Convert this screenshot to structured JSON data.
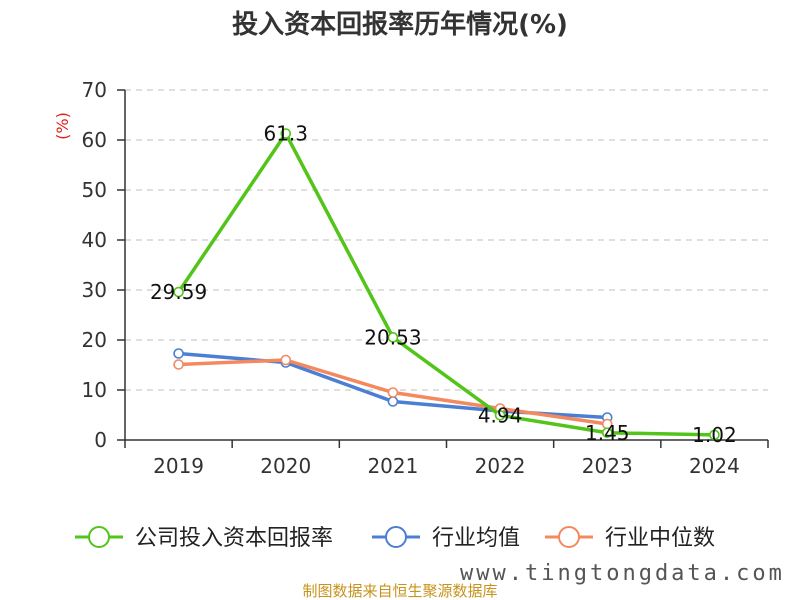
{
  "chart_data": {
    "type": "line",
    "title": "投入资本回报率历年情况(%)",
    "ylabel": "(%)",
    "xlabel": "",
    "categories": [
      "2019",
      "2020",
      "2021",
      "2022",
      "2023",
      "2024"
    ],
    "ylim": [
      0,
      70
    ],
    "yticks": [
      0,
      10,
      20,
      30,
      40,
      50,
      60,
      70
    ],
    "grid": true,
    "legend_position": "bottom",
    "series": [
      {
        "name": "公司投入资本回报率",
        "color": "#52c41a",
        "values": [
          29.59,
          61.3,
          20.53,
          4.94,
          1.45,
          1.02
        ],
        "labels": [
          "29.59",
          "61.3",
          "20.53",
          "4.94",
          "1.45",
          "1.02"
        ]
      },
      {
        "name": "行业均值",
        "color": "#4a7fd4",
        "values": [
          17.3,
          15.5,
          7.7,
          5.8,
          4.5,
          null
        ]
      },
      {
        "name": "行业中位数",
        "color": "#f4895f",
        "values": [
          15.1,
          16.0,
          9.5,
          6.3,
          3.2,
          null
        ]
      }
    ]
  },
  "footer": {
    "source": "制图数据来自恒生聚源数据库",
    "watermark": "www.tingtongdata.com"
  }
}
